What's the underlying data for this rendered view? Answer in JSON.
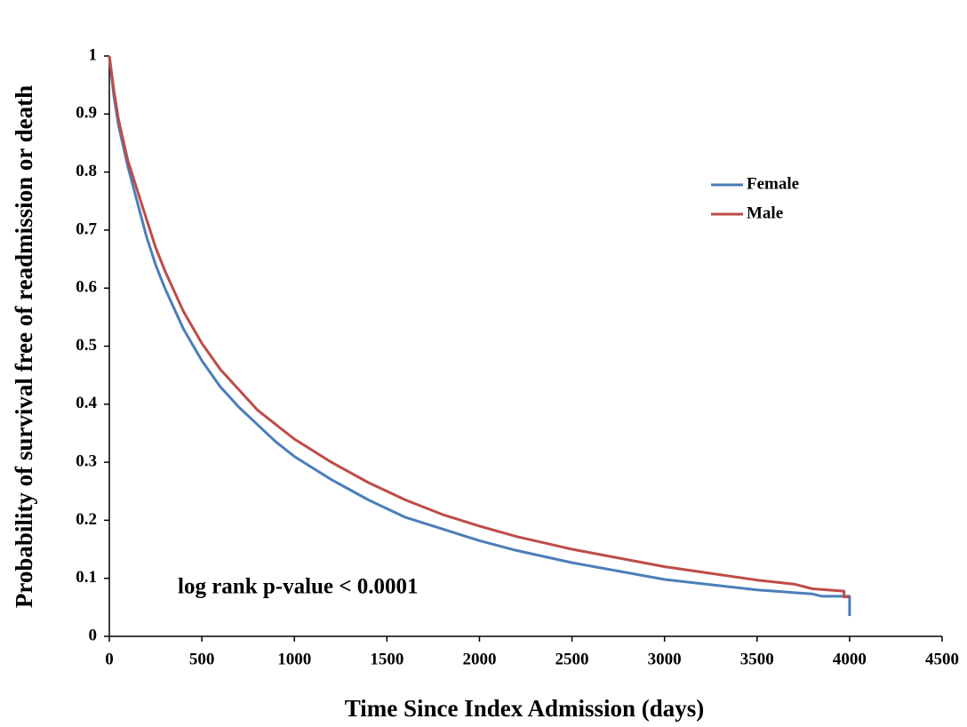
{
  "chart_data": {
    "type": "line",
    "x_label": "Time Since Index Admission (days)",
    "y_label": "Probability of survival free of readmission or death",
    "annotation": "log rank p-value < 0.0001",
    "xlim": [
      0,
      4500
    ],
    "xticks": [
      0,
      500,
      1000,
      1500,
      2000,
      2500,
      3000,
      3500,
      4000,
      4500
    ],
    "ylim": [
      0,
      1
    ],
    "yticks": [
      0,
      0.1,
      0.2,
      0.3,
      0.4,
      0.5,
      0.6,
      0.7,
      0.8,
      0.9,
      1
    ],
    "grid": false,
    "legend": "upper-right",
    "series": [
      {
        "name": "Female",
        "color": "#4a7ebb",
        "x": [
          0,
          25,
          50,
          100,
          150,
          200,
          250,
          300,
          400,
          500,
          600,
          700,
          800,
          900,
          1000,
          1200,
          1400,
          1600,
          1800,
          2000,
          2200,
          2500,
          3000,
          3500,
          3800,
          3850,
          4000,
          4000
        ],
        "values": [
          1.0,
          0.93,
          0.88,
          0.81,
          0.75,
          0.69,
          0.64,
          0.6,
          0.53,
          0.475,
          0.43,
          0.395,
          0.365,
          0.335,
          0.31,
          0.27,
          0.235,
          0.205,
          0.185,
          0.165,
          0.148,
          0.127,
          0.098,
          0.08,
          0.073,
          0.069,
          0.069,
          0.035
        ]
      },
      {
        "name": "Male",
        "color": "#be4b48",
        "x": [
          0,
          25,
          50,
          100,
          150,
          200,
          250,
          300,
          400,
          500,
          600,
          700,
          800,
          900,
          1000,
          1200,
          1400,
          1600,
          1800,
          2000,
          2200,
          2500,
          3000,
          3500,
          3700,
          3800,
          3970,
          3970,
          4000
        ],
        "values": [
          1.0,
          0.94,
          0.89,
          0.82,
          0.77,
          0.72,
          0.67,
          0.63,
          0.56,
          0.505,
          0.46,
          0.425,
          0.39,
          0.365,
          0.34,
          0.3,
          0.265,
          0.235,
          0.21,
          0.19,
          0.172,
          0.15,
          0.12,
          0.097,
          0.09,
          0.082,
          0.078,
          0.068,
          0.068
        ]
      }
    ]
  }
}
